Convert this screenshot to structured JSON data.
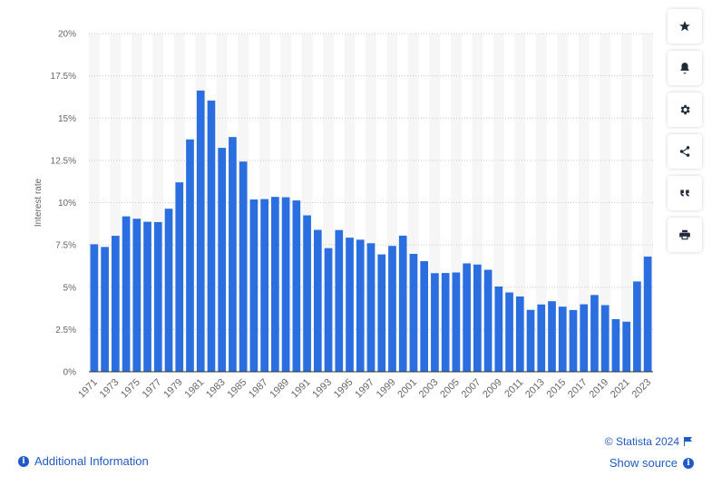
{
  "chart_data": {
    "type": "bar",
    "ylabel": "Interest rate",
    "ylim": [
      0,
      20
    ],
    "yticks": [
      "0%",
      "2.5%",
      "5%",
      "7.5%",
      "10%",
      "12.5%",
      "15%",
      "17.5%",
      "20%"
    ],
    "grid": true,
    "bar_color": "#2a6ee0",
    "categories": [
      "1971",
      "1972",
      "1973",
      "1974",
      "1975",
      "1976",
      "1977",
      "1978",
      "1979",
      "1980",
      "1981",
      "1982",
      "1983",
      "1984",
      "1985",
      "1986",
      "1987",
      "1988",
      "1989",
      "1990",
      "1991",
      "1992",
      "1993",
      "1994",
      "1995",
      "1996",
      "1997",
      "1998",
      "1999",
      "2000",
      "2001",
      "2002",
      "2003",
      "2004",
      "2005",
      "2006",
      "2007",
      "2008",
      "2009",
      "2010",
      "2011",
      "2012",
      "2013",
      "2014",
      "2015",
      "2016",
      "2017",
      "2018",
      "2019",
      "2020",
      "2021",
      "2022",
      "2023"
    ],
    "xtick_labels": [
      "1971",
      "1973",
      "1975",
      "1977",
      "1979",
      "1981",
      "1983",
      "1985",
      "1987",
      "1989",
      "1991",
      "1993",
      "1995",
      "1997",
      "1999",
      "2001",
      "2003",
      "2005",
      "2007",
      "2009",
      "2011",
      "2013",
      "2015",
      "2017",
      "2019",
      "2021",
      "2023"
    ],
    "values": [
      7.54,
      7.38,
      8.04,
      9.19,
      9.05,
      8.87,
      8.85,
      9.64,
      11.2,
      13.74,
      16.63,
      16.04,
      13.24,
      13.88,
      12.43,
      10.19,
      10.21,
      10.34,
      10.32,
      10.13,
      9.25,
      8.39,
      7.31,
      8.38,
      7.93,
      7.81,
      7.6,
      6.94,
      7.44,
      8.05,
      6.97,
      6.54,
      5.83,
      5.84,
      5.87,
      6.41,
      6.34,
      6.03,
      5.04,
      4.69,
      4.45,
      3.66,
      3.98,
      4.17,
      3.85,
      3.65,
      3.99,
      4.54,
      3.94,
      3.11,
      2.96,
      5.34,
      6.81
    ]
  },
  "toolbar": {
    "icons": [
      "star-icon",
      "bell-icon",
      "gear-icon",
      "share-icon",
      "quote-icon",
      "print-icon"
    ]
  },
  "footer": {
    "additional_info": "Additional Information",
    "credit": "© Statista 2024",
    "show_source": "Show source"
  },
  "colors": {
    "accent": "#1f5bc4",
    "bar": "#2a6ee0"
  }
}
